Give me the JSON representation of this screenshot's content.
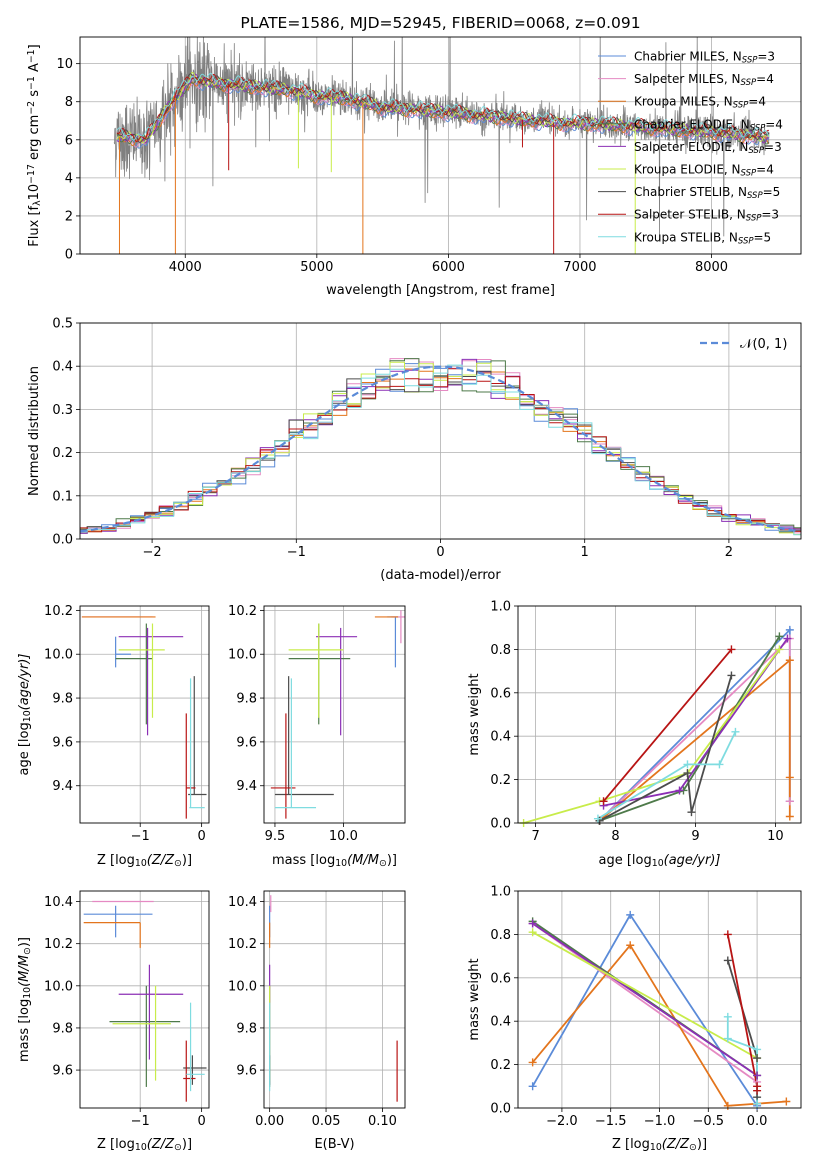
{
  "colors": {
    "chab_miles": "#5b8bd8",
    "salp_miles": "#e58ac3",
    "krou_miles": "#e3751d",
    "chab_elodie": "#4e7a4a",
    "salp_elodie": "#8b2fb5",
    "krou_elodie": "#c8ec4a",
    "chab_stelib": "#4c4c4c",
    "salp_stelib": "#b81414",
    "krou_stelib": "#7fdce0",
    "gauss": "#5b8bd8",
    "grid": "#b0b0b0"
  },
  "legend_models": [
    {
      "id": "chab_miles",
      "name": "Chabrier MILES, N",
      "sub": "SSP",
      "n": "=3"
    },
    {
      "id": "salp_miles",
      "name": "Salpeter MILES, N",
      "sub": "SSP",
      "n": "=4"
    },
    {
      "id": "krou_miles",
      "name": "Kroupa MILES, N",
      "sub": "SSP",
      "n": "=4"
    },
    {
      "id": "chab_elodie",
      "name": "Chabrier ELODIE, N",
      "sub": "SSP",
      "n": "=4"
    },
    {
      "id": "salp_elodie",
      "name": "Salpeter ELODIE, N",
      "sub": "SSP",
      "n": "=3"
    },
    {
      "id": "krou_elodie",
      "name": "Kroupa ELODIE, N",
      "sub": "SSP",
      "n": "=4"
    },
    {
      "id": "chab_stelib",
      "name": "Chabrier STELIB, N",
      "sub": "SSP",
      "n": "=5"
    },
    {
      "id": "salp_stelib",
      "name": "Salpeter STELIB, N",
      "sub": "SSP",
      "n": "=3"
    },
    {
      "id": "krou_stelib",
      "name": "Kroupa STELIB, N",
      "sub": "SSP",
      "n": "=5"
    }
  ],
  "chart_data": [
    {
      "id": "spectrum",
      "type": "line",
      "title": "PLATE=1586, MJD=52945, FIBERID=0068, z=0.091",
      "xlabel": "wavelength [Angstrom, rest frame]",
      "ylabel_parts": {
        "a": "Flux [f",
        "b": "λ",
        "c": "10",
        "d": "−17",
        "e": " erg cm",
        "f": "−2",
        "g": " s",
        "h": "−1",
        "i": " A",
        "j": "−1",
        "k": "]"
      },
      "xlim": [
        3200,
        8680
      ],
      "ylim": [
        0,
        11.4
      ],
      "xticks": [
        "4000",
        "5000",
        "6000",
        "7000",
        "8000"
      ],
      "xtick_values": [
        4000,
        5000,
        6000,
        7000,
        8000
      ],
      "yticks": [
        "0",
        "2",
        "4",
        "6",
        "8",
        "10"
      ],
      "ytick_values": [
        0,
        2,
        4,
        6,
        8,
        10
      ],
      "data_range": [
        3460,
        8440
      ],
      "continuum_knots": [
        [
          3460,
          6.2
        ],
        [
          3700,
          6.0
        ],
        [
          3900,
          8.0
        ],
        [
          4050,
          9.2
        ],
        [
          4200,
          9.0
        ],
        [
          4500,
          8.8
        ],
        [
          4800,
          8.6
        ],
        [
          5000,
          8.3
        ],
        [
          5200,
          8.2
        ],
        [
          5500,
          7.7
        ],
        [
          5900,
          7.5
        ],
        [
          6200,
          7.3
        ],
        [
          6500,
          7.1
        ],
        [
          6800,
          6.9
        ],
        [
          7200,
          6.8
        ],
        [
          7600,
          6.6
        ],
        [
          8000,
          6.4
        ],
        [
          8440,
          6.1
        ]
      ],
      "model_dips": [
        [
          3500,
          0
        ],
        [
          4330,
          4.4
        ],
        [
          4860,
          4.5
        ],
        [
          5350,
          0
        ],
        [
          6563,
          5.6
        ],
        [
          7420,
          0
        ],
        [
          3925,
          0
        ],
        [
          6800,
          0
        ],
        [
          5110,
          4.3
        ]
      ]
    },
    {
      "id": "residuals",
      "type": "histogram",
      "xlabel": "(data-model)/error",
      "ylabel": "Normed distribution",
      "legend": "𝒩(0, 1)",
      "xlim": [
        -2.5,
        2.5
      ],
      "ylim": [
        0,
        0.5
      ],
      "xticks": [
        "−2",
        "−1",
        "0",
        "1",
        "2"
      ],
      "xtick_values": [
        -2,
        -1,
        0,
        1,
        2
      ],
      "yticks": [
        "0.0",
        "0.1",
        "0.2",
        "0.3",
        "0.4",
        "0.5"
      ],
      "ytick_values": [
        0,
        0.1,
        0.2,
        0.3,
        0.4,
        0.5
      ],
      "bin_width": 0.1
    },
    {
      "id": "age_vs_z",
      "type": "errorbar",
      "xlabel_parts": {
        "a": "Z [log",
        "b": "10",
        "c": "(Z/Z",
        "d": "⊙",
        "e": ")]"
      },
      "ylabel_parts": {
        "a": "age  [log",
        "b": "10",
        "c": "(age/yr)]"
      },
      "xlim": [
        -1.98,
        0.12
      ],
      "ylim": [
        9.23,
        10.22
      ],
      "xticks": [
        "−1",
        "0"
      ],
      "xtick_values": [
        -1,
        0
      ],
      "yticks": [
        "9.4",
        "9.6",
        "9.8",
        "10.0",
        "10.2"
      ],
      "ytick_values": [
        9.4,
        9.6,
        9.8,
        10.0,
        10.2
      ],
      "points": [
        {
          "id": "chab_miles",
          "x": -1.4,
          "xlo": -1.4,
          "xhi": -1.15,
          "y": 10.0,
          "ylo": 9.94,
          "yhi": 10.08
        },
        {
          "id": "salp_miles",
          "x": -1.95,
          "xlo": -1.95,
          "xhi": -0.8,
          "y": 10.17,
          "ylo": 10.17,
          "yhi": 10.17
        },
        {
          "id": "krou_miles",
          "x": -1.85,
          "xlo": -1.95,
          "xhi": -0.75,
          "y": 10.17,
          "ylo": 10.17,
          "yhi": 10.17
        },
        {
          "id": "chab_elodie",
          "x": -0.9,
          "xlo": -1.4,
          "xhi": -0.8,
          "y": 9.98,
          "ylo": 9.68,
          "yhi": 10.14
        },
        {
          "id": "salp_elodie",
          "x": -0.88,
          "xlo": -1.35,
          "xhi": -0.3,
          "y": 10.08,
          "ylo": 9.63,
          "yhi": 10.12
        },
        {
          "id": "krou_elodie",
          "x": -0.8,
          "xlo": -1.35,
          "xhi": -0.6,
          "y": 10.02,
          "ylo": 9.71,
          "yhi": 10.14
        },
        {
          "id": "chab_stelib",
          "x": -0.12,
          "xlo": -0.22,
          "xhi": 0.08,
          "y": 9.36,
          "ylo": 9.36,
          "yhi": 9.9
        },
        {
          "id": "salp_stelib",
          "x": -0.25,
          "xlo": -0.25,
          "xhi": -0.1,
          "y": 9.39,
          "ylo": 9.25,
          "yhi": 9.73
        },
        {
          "id": "krou_stelib",
          "x": -0.18,
          "xlo": -0.2,
          "xhi": 0.05,
          "y": 9.3,
          "ylo": 9.3,
          "yhi": 9.89
        }
      ]
    },
    {
      "id": "age_vs_mass",
      "type": "errorbar",
      "xlabel_parts": {
        "a": "mass [log",
        "b": "10",
        "c": "(M/M",
        "d": "⊙",
        "e": ")]"
      },
      "xlim": [
        9.42,
        10.45
      ],
      "ylim": [
        9.23,
        10.22
      ],
      "xticks": [
        "9.5",
        "10.0"
      ],
      "xtick_values": [
        9.5,
        10.0
      ],
      "yticks": [
        "9.4",
        "9.6",
        "9.8",
        "10.0",
        "10.2"
      ],
      "ytick_values": [
        9.4,
        9.6,
        9.8,
        10.0,
        10.2
      ],
      "points": [
        {
          "id": "chab_miles",
          "x": 10.38,
          "xlo": 10.32,
          "xhi": 10.4,
          "y": 10.17,
          "ylo": 9.94,
          "yhi": 10.17
        },
        {
          "id": "salp_miles",
          "x": 10.42,
          "xlo": 10.35,
          "xhi": 10.45,
          "y": 10.17,
          "ylo": 10.05,
          "yhi": 10.2
        },
        {
          "id": "krou_miles",
          "x": 10.3,
          "xlo": 10.23,
          "xhi": 10.4,
          "y": 10.17,
          "ylo": 10.17,
          "yhi": 10.17
        },
        {
          "id": "chab_elodie",
          "x": 9.82,
          "xlo": 9.6,
          "xhi": 10.05,
          "y": 9.98,
          "ylo": 9.68,
          "yhi": 10.14
        },
        {
          "id": "salp_elodie",
          "x": 9.98,
          "xlo": 9.8,
          "xhi": 10.1,
          "y": 10.08,
          "ylo": 9.63,
          "yhi": 10.12
        },
        {
          "id": "krou_elodie",
          "x": 9.82,
          "xlo": 9.6,
          "xhi": 10.0,
          "y": 10.02,
          "ylo": 9.71,
          "yhi": 10.14
        },
        {
          "id": "chab_stelib",
          "x": 9.6,
          "xlo": 9.5,
          "xhi": 9.93,
          "y": 9.36,
          "ylo": 9.36,
          "yhi": 9.9
        },
        {
          "id": "salp_stelib",
          "x": 9.58,
          "xlo": 9.47,
          "xhi": 9.65,
          "y": 9.39,
          "ylo": 9.25,
          "yhi": 9.73
        },
        {
          "id": "krou_stelib",
          "x": 9.62,
          "xlo": 9.5,
          "xhi": 9.8,
          "y": 9.3,
          "ylo": 9.3,
          "yhi": 9.89
        }
      ]
    },
    {
      "id": "massweight_vs_age",
      "type": "line",
      "xlabel_parts": {
        "a": "age  [log",
        "b": "10",
        "c": "(age/yr)]"
      },
      "ylabel": "mass weight",
      "xlim": [
        6.78,
        10.32
      ],
      "ylim": [
        0,
        1.0
      ],
      "xticks": [
        "7",
        "8",
        "9",
        "10"
      ],
      "xtick_values": [
        7,
        8,
        9,
        10
      ],
      "yticks": [
        "0.0",
        "0.2",
        "0.4",
        "0.6",
        "0.8",
        "1.0"
      ],
      "ytick_values": [
        0,
        0.2,
        0.4,
        0.6,
        0.8,
        1.0
      ],
      "series": [
        {
          "id": "chab_miles",
          "x": [
            7.8,
            10.18,
            10.18
          ],
          "y": [
            0.01,
            0.89,
            0.1
          ]
        },
        {
          "id": "salp_miles",
          "x": [
            7.8,
            10.18,
            10.18
          ],
          "y": [
            0.01,
            0.85,
            0.1
          ]
        },
        {
          "id": "krou_miles",
          "x": [
            7.8,
            10.18,
            10.18,
            10.18
          ],
          "y": [
            0.01,
            0.75,
            0.21,
            0.03
          ]
        },
        {
          "id": "chab_elodie",
          "x": [
            7.8,
            8.85,
            10.05
          ],
          "y": [
            0.01,
            0.15,
            0.86
          ]
        },
        {
          "id": "salp_elodie",
          "x": [
            7.85,
            8.8,
            10.15
          ],
          "y": [
            0.08,
            0.15,
            0.85
          ]
        },
        {
          "id": "krou_elodie",
          "x": [
            6.85,
            7.8,
            8.9,
            10.05
          ],
          "y": [
            0.0,
            0.1,
            0.23,
            0.8
          ]
        },
        {
          "id": "chab_stelib",
          "x": [
            7.8,
            8.9,
            8.95,
            9.45
          ],
          "y": [
            0.01,
            0.23,
            0.05,
            0.68
          ]
        },
        {
          "id": "salp_stelib",
          "x": [
            7.85,
            9.45
          ],
          "y": [
            0.1,
            0.8
          ]
        },
        {
          "id": "krou_stelib",
          "x": [
            7.78,
            8.9,
            9.3,
            9.5
          ],
          "y": [
            0.02,
            0.27,
            0.27,
            0.42
          ]
        }
      ]
    },
    {
      "id": "mass_vs_z",
      "type": "errorbar",
      "xlabel_parts": {
        "a": "Z [log",
        "b": "10",
        "c": "(Z/Z",
        "d": "⊙",
        "e": ")]"
      },
      "ylabel_parts": {
        "a": "mass [log",
        "b": "10",
        "c": "(M/M",
        "d": "⊙",
        "e": ")]"
      },
      "xlim": [
        -1.98,
        0.12
      ],
      "ylim": [
        9.42,
        10.45
      ],
      "xticks": [
        "−1",
        "0"
      ],
      "xtick_values": [
        -1,
        0
      ],
      "yticks": [
        "9.6",
        "9.8",
        "10.0",
        "10.2",
        "10.4"
      ],
      "ytick_values": [
        9.6,
        9.8,
        10.0,
        10.2,
        10.4
      ],
      "points": [
        {
          "id": "chab_miles",
          "x": -1.4,
          "xlo": -1.92,
          "xhi": -0.8,
          "y": 10.34,
          "ylo": 10.23,
          "yhi": 10.38
        },
        {
          "id": "salp_miles",
          "x": -1.0,
          "xlo": -1.78,
          "xhi": -0.78,
          "y": 10.4,
          "ylo": 10.4,
          "yhi": 10.4
        },
        {
          "id": "krou_miles",
          "x": -1.0,
          "xlo": -1.92,
          "xhi": -1.0,
          "y": 10.3,
          "ylo": 10.18,
          "yhi": 10.3
        },
        {
          "id": "chab_elodie",
          "x": -0.9,
          "xlo": -1.5,
          "xhi": -0.35,
          "y": 9.83,
          "ylo": 9.52,
          "yhi": 10.0
        },
        {
          "id": "salp_elodie",
          "x": -0.85,
          "xlo": -1.35,
          "xhi": -0.3,
          "y": 9.96,
          "ylo": 9.65,
          "yhi": 10.1
        },
        {
          "id": "krou_elodie",
          "x": -0.75,
          "xlo": -1.45,
          "xhi": -0.5,
          "y": 9.82,
          "ylo": 9.55,
          "yhi": 10.0
        },
        {
          "id": "chab_stelib",
          "x": -0.15,
          "xlo": -0.3,
          "xhi": 0.08,
          "y": 9.61,
          "ylo": 9.53,
          "yhi": 9.67
        },
        {
          "id": "salp_stelib",
          "x": -0.25,
          "xlo": -0.3,
          "xhi": -0.1,
          "y": 9.56,
          "ylo": 9.45,
          "yhi": 9.74
        },
        {
          "id": "krou_stelib",
          "x": -0.18,
          "xlo": -0.25,
          "xhi": 0.05,
          "y": 9.58,
          "ylo": 9.5,
          "yhi": 9.92
        }
      ]
    },
    {
      "id": "mass_vs_ebv",
      "type": "errorbar",
      "xlabel": "E(B-V)",
      "xlim": [
        -0.005,
        0.12
      ],
      "ylim": [
        9.42,
        10.45
      ],
      "xticks": [
        "0.00",
        "0.05",
        "0.10"
      ],
      "xtick_values": [
        0,
        0.05,
        0.1
      ],
      "yticks": [
        "9.6",
        "9.8",
        "10.0",
        "10.2",
        "10.4"
      ],
      "ytick_values": [
        9.6,
        9.8,
        10.0,
        10.2,
        10.4
      ],
      "points": [
        {
          "id": "chab_miles",
          "x": 0.0,
          "xlo": 0.0,
          "xhi": 0.0,
          "y": 10.34,
          "ylo": 10.23,
          "yhi": 10.38
        },
        {
          "id": "salp_miles",
          "x": 0.001,
          "xlo": 0.001,
          "xhi": 0.001,
          "y": 10.4,
          "ylo": 10.35,
          "yhi": 10.43
        },
        {
          "id": "krou_miles",
          "x": 0.0,
          "xlo": 0.0,
          "xhi": 0.0,
          "y": 10.3,
          "ylo": 10.18,
          "yhi": 10.3
        },
        {
          "id": "chab_elodie",
          "x": 0.0,
          "xlo": 0.0,
          "xhi": 0.0,
          "y": 9.83,
          "ylo": 9.52,
          "yhi": 10.0
        },
        {
          "id": "salp_elodie",
          "x": 0.0,
          "xlo": 0.0,
          "xhi": 0.0,
          "y": 9.96,
          "ylo": 9.65,
          "yhi": 10.1
        },
        {
          "id": "krou_elodie",
          "x": 0.0,
          "xlo": 0.0,
          "xhi": 0.0,
          "y": 9.82,
          "ylo": 9.55,
          "yhi": 10.0
        },
        {
          "id": "chab_stelib",
          "x": 0.0,
          "xlo": 0.0,
          "xhi": 0.0,
          "y": 9.61,
          "ylo": 9.53,
          "yhi": 9.67
        },
        {
          "id": "salp_stelib",
          "x": 0.113,
          "xlo": 0.113,
          "xhi": 0.113,
          "y": 9.56,
          "ylo": 9.45,
          "yhi": 9.74
        },
        {
          "id": "krou_stelib",
          "x": 0.0,
          "xlo": 0.0,
          "xhi": 0.0,
          "y": 9.58,
          "ylo": 9.5,
          "yhi": 9.92
        }
      ]
    },
    {
      "id": "massweight_vs_z",
      "type": "line",
      "xlabel_parts": {
        "a": "Z [log",
        "b": "10",
        "c": "(Z/Z",
        "d": "⊙",
        "e": ")]"
      },
      "ylabel": "mass weight",
      "xlim": [
        -2.45,
        0.45
      ],
      "ylim": [
        0,
        1.0
      ],
      "xticks": [
        "−2.0",
        "−1.5",
        "−1.0",
        "−0.5",
        "0.0"
      ],
      "xtick_values": [
        -2,
        -1.5,
        -1,
        -0.5,
        0
      ],
      "yticks": [
        "0.0",
        "0.2",
        "0.4",
        "0.6",
        "0.8",
        "1.0"
      ],
      "ytick_values": [
        0,
        0.2,
        0.4,
        0.6,
        0.8,
        1.0
      ],
      "series": [
        {
          "id": "chab_miles",
          "x": [
            -2.3,
            -1.3,
            0.0
          ],
          "y": [
            0.1,
            0.89,
            0.01
          ]
        },
        {
          "id": "salp_miles",
          "x": [
            -2.3,
            0.0
          ],
          "y": [
            0.85,
            0.12
          ]
        },
        {
          "id": "krou_miles",
          "x": [
            -2.3,
            -1.3,
            -0.3,
            0.3
          ],
          "y": [
            0.21,
            0.75,
            0.01,
            0.03
          ]
        },
        {
          "id": "chab_elodie",
          "x": [
            -2.3,
            0.0
          ],
          "y": [
            0.86,
            0.15
          ]
        },
        {
          "id": "salp_elodie",
          "x": [
            -2.3,
            0.0
          ],
          "y": [
            0.85,
            0.15
          ]
        },
        {
          "id": "krou_elodie",
          "x": [
            -2.3,
            0.0
          ],
          "y": [
            0.81,
            0.23
          ]
        },
        {
          "id": "chab_stelib",
          "x": [
            -0.3,
            0.0,
            0.0
          ],
          "y": [
            0.68,
            0.23,
            0.05
          ]
        },
        {
          "id": "salp_stelib",
          "x": [
            -0.3,
            0.0,
            0.0
          ],
          "y": [
            0.8,
            0.1,
            0.08
          ]
        },
        {
          "id": "krou_stelib",
          "x": [
            -0.3,
            -0.3,
            0.0,
            0.0
          ],
          "y": [
            0.42,
            0.32,
            0.27,
            0.02
          ]
        }
      ]
    }
  ]
}
